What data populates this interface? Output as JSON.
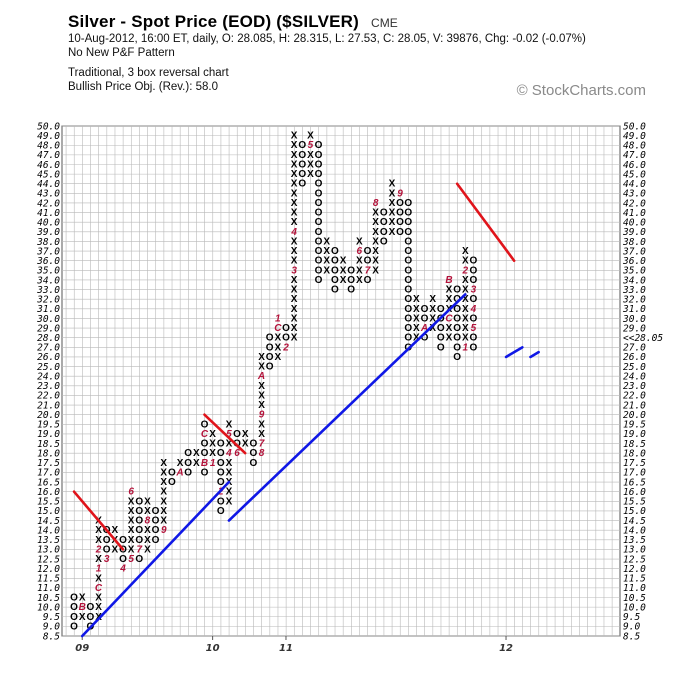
{
  "header": {
    "title": "Silver - Spot Price (EOD) ($SILVER)",
    "exchange": "CME",
    "quote_line": "10-Aug-2012, 16:00 ET, daily, O: 28.085, H: 28.315, L: 27.53, C: 28.05, V: 39876, Chg: -0.02 (-0.07%)",
    "pattern": "No New P&F Pattern",
    "chart_type": "Traditional, 3 box reversal chart",
    "price_objective": "Bullish Price Obj. (Rev.): 58.0",
    "watermark": "© StockCharts.com"
  },
  "chart_data": {
    "type": "point-and-figure",
    "reversal": 3,
    "y_ticks": [
      8.5,
      9.0,
      9.5,
      10.0,
      10.5,
      11.0,
      11.5,
      12.0,
      12.5,
      13.0,
      13.5,
      14.0,
      14.5,
      15.0,
      15.5,
      16.0,
      16.5,
      17.0,
      17.5,
      18.0,
      18.5,
      19.0,
      19.5,
      20.0,
      21.0,
      22.0,
      23.0,
      24.0,
      25.0,
      26.0,
      27.0,
      28.0,
      29.0,
      30.0,
      31.0,
      32.0,
      33.0,
      34.0,
      35.0,
      36.0,
      37.0,
      38.0,
      39.0,
      40.0,
      41.0,
      42.0,
      43.0,
      44.0,
      45.0,
      46.0,
      47.0,
      48.0,
      49.0,
      50.0
    ],
    "y_tick_labels": [
      "8.5",
      "9.0",
      "9.5",
      "10.0",
      "10.5",
      "11.0",
      "11.5",
      "12.0",
      "12.5",
      "13.0",
      "13.5",
      "14.0",
      "14.5",
      "15.0",
      "15.5",
      "16.0",
      "16.5",
      "17.0",
      "17.5",
      "18.0",
      "18.5",
      "19.0",
      "19.5",
      "20.0",
      "21.0",
      "22.0",
      "23.0",
      "24.0",
      "25.0",
      "26.0",
      "27.0",
      "28.0",
      "29.0",
      "30.0",
      "31.0",
      "32.0",
      "33.0",
      "34.0",
      "35.0",
      "36.0",
      "37.0",
      "38.0",
      "39.0",
      "40.0",
      "41.0",
      "42.0",
      "43.0",
      "44.0",
      "45.0",
      "46.0",
      "47.0",
      "48.0",
      "49.0",
      "50.0"
    ],
    "last_price_label": "28.0",
    "last_close_marker": "<<28.05",
    "x_labels": [
      {
        "col": 1,
        "label": "09"
      },
      {
        "col": 17,
        "label": "10"
      },
      {
        "col": 26,
        "label": "11"
      },
      {
        "col": 53,
        "label": "12"
      }
    ],
    "columns": [
      {
        "t": "O",
        "lo": 9.0,
        "hi": 10.5
      },
      {
        "t": "X",
        "lo": 9.5,
        "hi": 10.5,
        "m": {
          "10.0": "B"
        }
      },
      {
        "t": "O",
        "lo": 9.0,
        "hi": 10.0
      },
      {
        "t": "X",
        "lo": 9.5,
        "hi": 14.5,
        "m": {
          "11.0": "C",
          "12.0": "1",
          "13.0": "2"
        }
      },
      {
        "t": "O",
        "lo": 12.5,
        "hi": 14.0,
        "m": {
          "12.5": "3"
        }
      },
      {
        "t": "X",
        "lo": 13.0,
        "hi": 14.0
      },
      {
        "t": "O",
        "lo": 12.0,
        "hi": 13.5,
        "m": {
          "12.0": "4"
        }
      },
      {
        "t": "X",
        "lo": 12.5,
        "hi": 16.0,
        "m": {
          "16.0": "6",
          "12.5": "5"
        }
      },
      {
        "t": "O",
        "lo": 12.5,
        "hi": 15.5,
        "m": {
          "13.0": "7"
        }
      },
      {
        "t": "X",
        "lo": 13.0,
        "hi": 15.5,
        "m": {
          "14.5": "8"
        }
      },
      {
        "t": "O",
        "lo": 13.5,
        "hi": 15.0
      },
      {
        "t": "X",
        "lo": 14.0,
        "hi": 17.5,
        "m": {
          "14.0": "9"
        }
      },
      {
        "t": "O",
        "lo": 16.5,
        "hi": 17.0
      },
      {
        "t": "X",
        "lo": 17.0,
        "hi": 17.5,
        "m": {
          "17.0": "A"
        }
      },
      {
        "t": "O",
        "lo": 17.0,
        "hi": 18.0
      },
      {
        "t": "X",
        "lo": 17.5,
        "hi": 18.0
      },
      {
        "t": "O",
        "lo": 17.0,
        "hi": 19.5,
        "m": {
          "19.0": "C",
          "17.5": "B"
        }
      },
      {
        "t": "X",
        "lo": 17.5,
        "hi": 19.0,
        "m": {
          "17.5": "1"
        }
      },
      {
        "t": "O",
        "lo": 15.0,
        "hi": 18.5,
        "m": {
          "16.0": "2"
        }
      },
      {
        "t": "X",
        "lo": 15.5,
        "hi": 19.5,
        "m": {
          "19.0": "5",
          "18.0": "4"
        }
      },
      {
        "t": "O",
        "lo": 18.0,
        "hi": 19.0,
        "m": {
          "18.0": "6"
        }
      },
      {
        "t": "X",
        "lo": 18.5,
        "hi": 19.0
      },
      {
        "t": "O",
        "lo": 17.5,
        "hi": 18.5
      },
      {
        "t": "X",
        "lo": 18.0,
        "hi": 26.0,
        "m": {
          "18.5": "7",
          "18.0": "8",
          "20.0": "9",
          "24.0": "A"
        }
      },
      {
        "t": "O",
        "lo": 25.0,
        "hi": 28.0
      },
      {
        "t": "X",
        "lo": 26.0,
        "hi": 30.0,
        "m": {
          "29.0": "C",
          "30.0": "1"
        }
      },
      {
        "t": "O",
        "lo": 27.0,
        "hi": 29.0,
        "m": {
          "27.0": "2"
        }
      },
      {
        "t": "X",
        "lo": 28.0,
        "hi": 49.0,
        "m": {
          "35.0": "3",
          "39.0": "4"
        }
      },
      {
        "t": "O",
        "lo": 44.0,
        "hi": 48.0
      },
      {
        "t": "X",
        "lo": 45.0,
        "hi": 49.0,
        "m": {
          "48.0": "5"
        }
      },
      {
        "t": "O",
        "lo": 34.0,
        "hi": 48.0
      },
      {
        "t": "X",
        "lo": 35.0,
        "hi": 38.0
      },
      {
        "t": "O",
        "lo": 33.0,
        "hi": 37.0
      },
      {
        "t": "X",
        "lo": 34.0,
        "hi": 36.0
      },
      {
        "t": "O",
        "lo": 33.0,
        "hi": 35.0
      },
      {
        "t": "X",
        "lo": 34.0,
        "hi": 38.0,
        "m": {
          "37.0": "6"
        }
      },
      {
        "t": "O",
        "lo": 34.0,
        "hi": 37.0,
        "m": {
          "35.0": "7"
        }
      },
      {
        "t": "X",
        "lo": 35.0,
        "hi": 42.0,
        "m": {
          "42.0": "8"
        }
      },
      {
        "t": "O",
        "lo": 38.0,
        "hi": 41.0
      },
      {
        "t": "X",
        "lo": 39.0,
        "hi": 44.0
      },
      {
        "t": "O",
        "lo": 39.0,
        "hi": 43.0,
        "m": {
          "43.0": "9"
        }
      },
      {
        "t": "O",
        "lo": 27.0,
        "hi": 42.0
      },
      {
        "t": "X",
        "lo": 28.0,
        "hi": 32.0
      },
      {
        "t": "O",
        "lo": 28.0,
        "hi": 31.0,
        "m": {
          "29.0": "A"
        }
      },
      {
        "t": "X",
        "lo": 29.0,
        "hi": 32.0
      },
      {
        "t": "O",
        "lo": 27.0,
        "hi": 31.0
      },
      {
        "t": "X",
        "lo": 28.0,
        "hi": 34.0,
        "m": {
          "34.0": "B",
          "30.0": "C"
        }
      },
      {
        "t": "O",
        "lo": 26.0,
        "hi": 33.0
      },
      {
        "t": "X",
        "lo": 27.0,
        "hi": 37.0,
        "m": {
          "35.0": "2",
          "27.0": "1"
        }
      },
      {
        "t": "O",
        "lo": 27.0,
        "hi": 36.0,
        "m": {
          "33.0": "3",
          "31.0": "4",
          "29.0": "5"
        }
      }
    ],
    "trendlines": [
      {
        "color": "#e0141b",
        "kind": "resistance",
        "from": {
          "col": 0,
          "price": 16.0
        },
        "to": {
          "col": 6,
          "price": 13.0
        }
      },
      {
        "color": "#e0141b",
        "kind": "resistance",
        "from": {
          "col": 16,
          "price": 20.0
        },
        "to": {
          "col": 21,
          "price": 18.0
        }
      },
      {
        "color": "#e0141b",
        "kind": "resistance",
        "from": {
          "col": 47,
          "price": 44.0
        },
        "to": {
          "col": 54,
          "price": 36.0
        }
      },
      {
        "color": "#1018e6",
        "kind": "support",
        "from": {
          "col": 1,
          "price": 8.5
        },
        "to": {
          "col": 19,
          "price": 16.5
        }
      },
      {
        "color": "#1018e6",
        "kind": "support",
        "from": {
          "col": 19,
          "price": 14.5
        },
        "to": {
          "col": 48,
          "price": 32.5
        }
      },
      {
        "color": "#1018e6",
        "kind": "support",
        "from": {
          "col": 53,
          "price": 26.0
        },
        "to": {
          "col": 55,
          "price": 27.0
        }
      },
      {
        "color": "#1018e6",
        "kind": "support",
        "from": {
          "col": 56,
          "price": 26.0
        },
        "to": {
          "col": 57,
          "price": 26.5
        }
      }
    ]
  }
}
